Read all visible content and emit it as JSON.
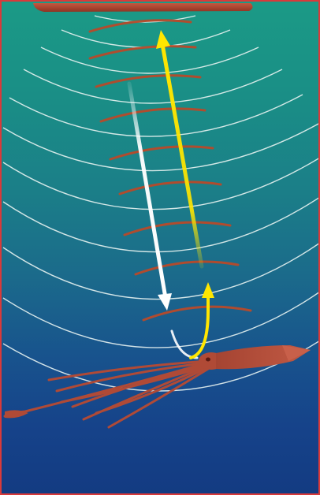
{
  "diagram": {
    "elements": [
      {
        "kind": "ship",
        "name": "ship-hull"
      },
      {
        "kind": "outgoing-pulse",
        "name": "outgoing-sonar-arrow",
        "color": "#ffffff"
      },
      {
        "kind": "return-echo",
        "name": "return-echo-arrow",
        "color": "#ffe600"
      },
      {
        "kind": "target",
        "name": "squid"
      }
    ],
    "palette": {
      "border": "#d93a3a",
      "water_top": "#1b9a86",
      "water_bottom": "#133b82",
      "wave_front": "#e8f3f1",
      "echo_arc": "#b84a2a",
      "squid": "#b04a36"
    }
  }
}
